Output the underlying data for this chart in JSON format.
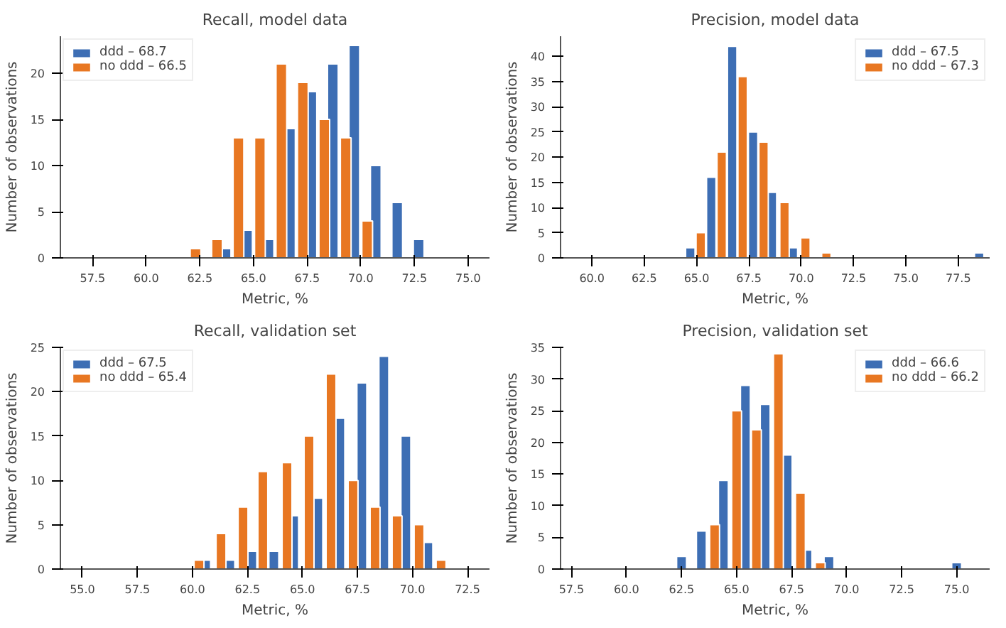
{
  "chart_data": [
    {
      "type": "bar",
      "title": "Recall, model data",
      "xlabel": "Metric, %",
      "ylabel": "Number of observations",
      "xlim": [
        56,
        76
      ],
      "xticks": [
        {
          "value": 57.5,
          "label": "57.5"
        },
        {
          "value": 60,
          "label": "60.0"
        },
        {
          "value": 62.5,
          "label": "62.5"
        },
        {
          "value": 65,
          "label": "65.0"
        },
        {
          "value": 67.5,
          "label": "67.5"
        },
        {
          "value": 70,
          "label": "70.0"
        },
        {
          "value": 72.5,
          "label": "72.5"
        },
        {
          "value": 75,
          "label": "75.0"
        }
      ],
      "ylim": [
        0,
        24
      ],
      "yticks": [
        0,
        5,
        10,
        15,
        20
      ],
      "grid": false,
      "legend": "top left",
      "series": [
        {
          "name": "ddd – 68.7",
          "color": "#3d6eb4",
          "x": [
            63.7,
            64.7,
            65.7,
            66.7,
            67.7,
            68.7,
            69.7,
            70.7,
            71.7,
            72.7
          ],
          "values": [
            1,
            3,
            2,
            14,
            18,
            21,
            23,
            10,
            6,
            2
          ]
        },
        {
          "name": "no ddd – 66.5",
          "color": "#e87722",
          "x": [
            62.3,
            63.3,
            64.3,
            65.3,
            66.3,
            67.3,
            68.3,
            69.3,
            70.3
          ],
          "values": [
            1,
            2,
            13,
            13,
            21,
            19,
            15,
            13,
            4
          ]
        }
      ]
    },
    {
      "type": "bar",
      "title": "Precision, model data",
      "xlabel": "Metric, %",
      "ylabel": "Number of observations",
      "xlim": [
        58.5,
        79
      ],
      "xticks": [
        {
          "value": 60,
          "label": "60.0"
        },
        {
          "value": 62.5,
          "label": "62.5"
        },
        {
          "value": 65,
          "label": "65.0"
        },
        {
          "value": 67.5,
          "label": "67.5"
        },
        {
          "value": 70,
          "label": "70.0"
        },
        {
          "value": 72.5,
          "label": "72.5"
        },
        {
          "value": 75,
          "label": "75.0"
        },
        {
          "value": 77.5,
          "label": "77.5"
        }
      ],
      "ylim": [
        0,
        44
      ],
      "yticks": [
        0,
        5,
        10,
        15,
        20,
        25,
        30,
        35,
        40
      ],
      "grid": false,
      "legend": "top right",
      "series": [
        {
          "name": "ddd – 67.5",
          "color": "#3d6eb4",
          "x": [
            64.7,
            65.7,
            66.7,
            67.7,
            68.6,
            69.6,
            78.5
          ],
          "values": [
            2,
            16,
            42,
            25,
            13,
            2,
            1
          ]
        },
        {
          "name": "no ddd – 67.3",
          "color": "#e87722",
          "x": [
            65.2,
            66.2,
            67.2,
            68.2,
            69.2,
            70.2,
            71.2
          ],
          "values": [
            5,
            21,
            36,
            23,
            11,
            4,
            1
          ]
        }
      ]
    },
    {
      "type": "bar",
      "title": "Recall, validation set",
      "xlabel": "Metric, %",
      "ylabel": "Number of observations",
      "xlim": [
        54,
        73.5
      ],
      "xticks": [
        {
          "value": 55,
          "label": "55.0"
        },
        {
          "value": 57.5,
          "label": "57.5"
        },
        {
          "value": 60,
          "label": "60.0"
        },
        {
          "value": 62.5,
          "label": "62.5"
        },
        {
          "value": 65,
          "label": "65.0"
        },
        {
          "value": 67.5,
          "label": "67.5"
        },
        {
          "value": 70,
          "label": "70.0"
        },
        {
          "value": 72.5,
          "label": "72.5"
        }
      ],
      "ylim": [
        0,
        25
      ],
      "yticks": [
        0,
        5,
        10,
        15,
        20,
        25
      ],
      "grid": false,
      "legend": "top left",
      "series": [
        {
          "name": "ddd – 67.5",
          "color": "#3d6eb4",
          "x": [
            60.6,
            61.7,
            62.7,
            63.7,
            64.6,
            65.7,
            66.7,
            67.7,
            68.7,
            69.7,
            70.7
          ],
          "values": [
            1,
            1,
            2,
            2,
            6,
            8,
            17,
            21,
            24,
            15,
            3
          ]
        },
        {
          "name": "no ddd – 65.4",
          "color": "#e87722",
          "x": [
            60.3,
            61.3,
            62.3,
            63.2,
            64.3,
            65.3,
            66.3,
            67.3,
            68.3,
            69.3,
            70.3,
            71.3
          ],
          "values": [
            1,
            4,
            7,
            11,
            12,
            15,
            22,
            10,
            7,
            6,
            5,
            1
          ]
        }
      ]
    },
    {
      "type": "bar",
      "title": "Precision, validation set",
      "xlabel": "Metric, %",
      "ylabel": "Number of observations",
      "xlim": [
        57,
        76.5
      ],
      "xticks": [
        {
          "value": 57.5,
          "label": "57.5"
        },
        {
          "value": 60,
          "label": "60.0"
        },
        {
          "value": 62.5,
          "label": "62.5"
        },
        {
          "value": 65,
          "label": "65.0"
        },
        {
          "value": 67.5,
          "label": "67.5"
        },
        {
          "value": 70,
          "label": "70.0"
        },
        {
          "value": 72.5,
          "label": "72.5"
        },
        {
          "value": 75,
          "label": "75.0"
        }
      ],
      "ylim": [
        0,
        35
      ],
      "yticks": [
        0,
        5,
        10,
        15,
        20,
        25,
        30,
        35
      ],
      "grid": false,
      "legend": "top right",
      "series": [
        {
          "name": "ddd – 66.6",
          "color": "#3d6eb4",
          "x": [
            62.5,
            63.4,
            64.4,
            65.4,
            66.3,
            67.3,
            68.2,
            69.2,
            75.0
          ],
          "values": [
            2,
            6,
            14,
            29,
            26,
            18,
            3,
            2,
            1
          ]
        },
        {
          "name": "no ddd – 66.2",
          "color": "#e87722",
          "x": [
            64.0,
            65.0,
            65.9,
            66.9,
            67.9,
            68.8
          ],
          "values": [
            7,
            25,
            22,
            34,
            12,
            1
          ]
        }
      ]
    }
  ]
}
